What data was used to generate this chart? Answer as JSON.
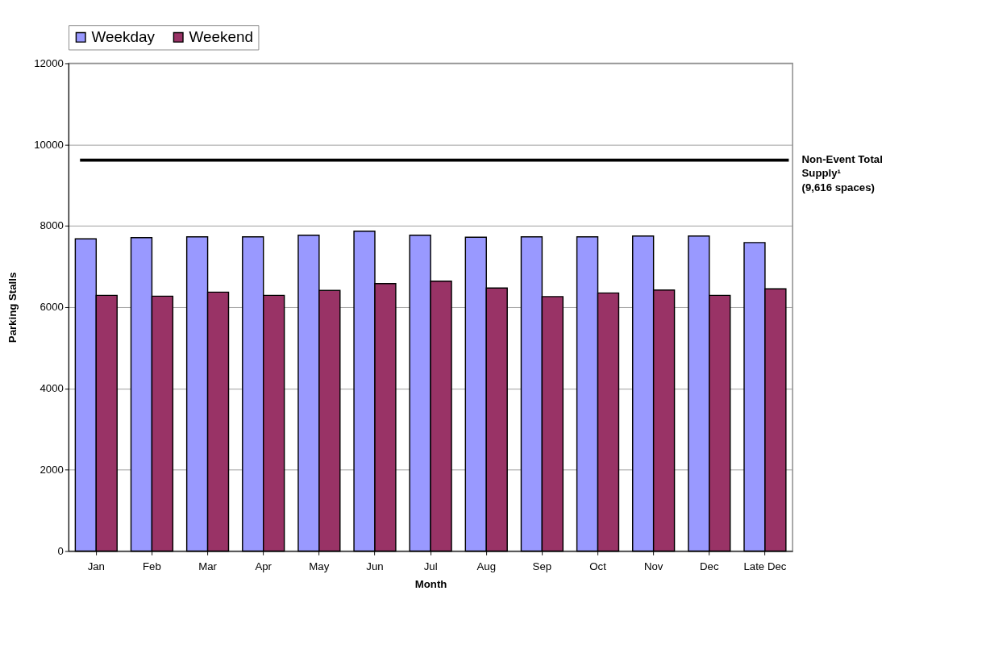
{
  "chart_data": {
    "type": "bar",
    "xlabel": "Month",
    "ylabel": "Parking Stalls",
    "categories": [
      "Jan",
      "Feb",
      "Mar",
      "Apr",
      "May",
      "Jun",
      "Jul",
      "Aug",
      "Sep",
      "Oct",
      "Nov",
      "Dec",
      "Late Dec"
    ],
    "series": [
      {
        "name": "Weekday",
        "color": "#9999ff",
        "values": [
          7680,
          7710,
          7730,
          7730,
          7770,
          7870,
          7770,
          7720,
          7730,
          7730,
          7750,
          7750,
          7590
        ]
      },
      {
        "name": "Weekend",
        "color": "#993366",
        "values": [
          6290,
          6270,
          6370,
          6290,
          6410,
          6580,
          6640,
          6470,
          6260,
          6350,
          6420,
          6290,
          6450
        ]
      }
    ],
    "ylim": [
      0,
      12000
    ],
    "yticks": [
      0,
      2000,
      4000,
      6000,
      8000,
      10000,
      12000
    ],
    "ref_lines": [
      {
        "axis": "y",
        "value": 9616,
        "label": "Non-Event Total\nSupply¹\n(9,616 spaces)",
        "color": "#000000",
        "line_style": "solid"
      }
    ],
    "grid": "y",
    "legend": "top"
  }
}
